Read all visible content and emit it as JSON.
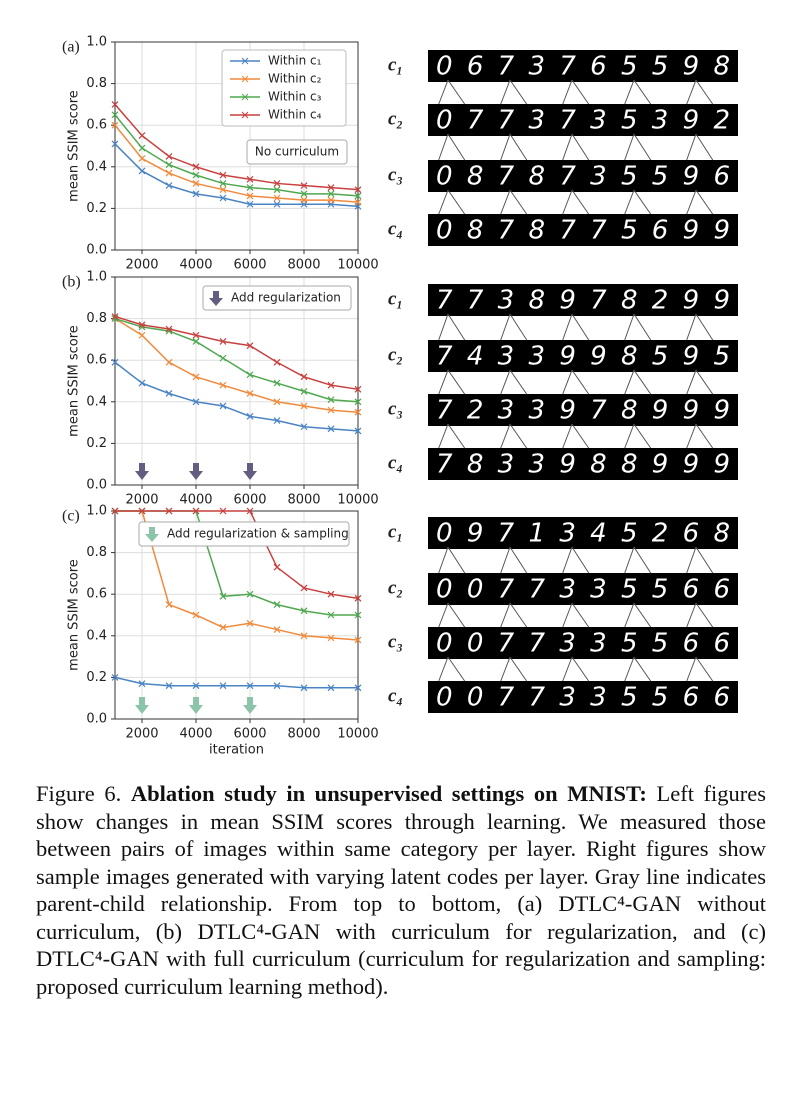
{
  "chart_data": [
    {
      "type": "line",
      "panel_label": "(a)",
      "ylabel": "mean SSIM score",
      "annotation": "No curriculum",
      "legend": "upper right",
      "x": [
        1000,
        2000,
        3000,
        4000,
        5000,
        6000,
        7000,
        8000,
        9000,
        10000
      ],
      "xlim": [
        1000,
        10000
      ],
      "xticks": [
        2000,
        4000,
        6000,
        8000,
        10000
      ],
      "ylim": [
        0,
        1
      ],
      "yticks": [
        {
          "value": 0,
          "label": "0.0"
        },
        0.2,
        0.4,
        0.6,
        0.8,
        {
          "value": 1,
          "label": "1.0"
        }
      ],
      "series": [
        {
          "name": "Within c₁",
          "color": "#4a84c4",
          "values": [
            0.51,
            0.38,
            0.31,
            0.27,
            0.25,
            0.22,
            0.22,
            0.22,
            0.22,
            0.21
          ]
        },
        {
          "name": "Within c₂",
          "color": "#f08a3c",
          "values": [
            0.6,
            0.44,
            0.37,
            0.32,
            0.29,
            0.26,
            0.25,
            0.24,
            0.24,
            0.23
          ]
        },
        {
          "name": "Within c₃",
          "color": "#4fa84f",
          "values": [
            0.65,
            0.49,
            0.41,
            0.36,
            0.32,
            0.3,
            0.29,
            0.27,
            0.27,
            0.26
          ]
        },
        {
          "name": "Within c₄",
          "color": "#c8413f",
          "values": [
            0.7,
            0.55,
            0.45,
            0.4,
            0.36,
            0.34,
            0.32,
            0.31,
            0.3,
            0.29
          ]
        }
      ]
    },
    {
      "type": "line",
      "panel_label": "(b)",
      "ylabel": "mean SSIM score",
      "annotation": "Add regularization",
      "arrows_x": [
        2000,
        4000,
        6000
      ],
      "arrow_color": "#635d82",
      "x": [
        1000,
        2000,
        3000,
        4000,
        5000,
        6000,
        7000,
        8000,
        9000,
        10000
      ],
      "xlim": [
        1000,
        10000
      ],
      "xticks": [
        2000,
        4000,
        6000,
        8000,
        10000
      ],
      "ylim": [
        0,
        1
      ],
      "yticks": [
        {
          "value": 0,
          "label": "0.0"
        },
        0.2,
        0.4,
        0.6,
        0.8,
        {
          "value": 1,
          "label": "1.0"
        }
      ],
      "series": [
        {
          "color": "#4a84c4",
          "values": [
            0.59,
            0.49,
            0.44,
            0.4,
            0.38,
            0.33,
            0.31,
            0.28,
            0.27,
            0.26
          ]
        },
        {
          "color": "#f08a3c",
          "values": [
            0.8,
            0.72,
            0.59,
            0.52,
            0.48,
            0.44,
            0.4,
            0.38,
            0.36,
            0.35
          ]
        },
        {
          "color": "#4fa84f",
          "values": [
            0.8,
            0.76,
            0.74,
            0.69,
            0.61,
            0.53,
            0.49,
            0.45,
            0.41,
            0.4
          ]
        },
        {
          "color": "#c8413f",
          "values": [
            0.81,
            0.77,
            0.75,
            0.72,
            0.69,
            0.67,
            0.59,
            0.52,
            0.48,
            0.46
          ]
        }
      ]
    },
    {
      "type": "line",
      "panel_label": "(c)",
      "ylabel": "mean SSIM score",
      "xlabel": "iteration",
      "annotation": "Add regularization & sampling",
      "arrows_x": [
        2000,
        4000,
        6000
      ],
      "arrow_color": "#8cc4aa",
      "x": [
        1000,
        2000,
        3000,
        4000,
        5000,
        6000,
        7000,
        8000,
        9000,
        10000
      ],
      "xlim": [
        1000,
        10000
      ],
      "xticks": [
        2000,
        4000,
        6000,
        8000,
        10000
      ],
      "ylim": [
        0,
        1
      ],
      "yticks": [
        {
          "value": 0,
          "label": "0.0"
        },
        0.2,
        0.4,
        0.6,
        0.8,
        {
          "value": 1,
          "label": "1.0"
        }
      ],
      "series": [
        {
          "color": "#4a84c4",
          "values": [
            0.2,
            0.17,
            0.16,
            0.16,
            0.16,
            0.16,
            0.16,
            0.15,
            0.15,
            0.15
          ]
        },
        {
          "color": "#f08a3c",
          "values": [
            1.0,
            1.0,
            0.55,
            0.5,
            0.44,
            0.46,
            0.43,
            0.4,
            0.39,
            0.38
          ]
        },
        {
          "color": "#4fa84f",
          "values": [
            1.0,
            1.0,
            1.0,
            1.0,
            0.59,
            0.6,
            0.55,
            0.52,
            0.5,
            0.5
          ]
        },
        {
          "color": "#c8413f",
          "values": [
            1.0,
            1.0,
            1.0,
            1.0,
            1.0,
            1.0,
            0.73,
            0.63,
            0.6,
            0.58
          ]
        }
      ]
    }
  ],
  "samples": [
    [
      {
        "label": "c₁",
        "digits": "0673765598"
      },
      {
        "label": "c₂",
        "digits": "0773735392"
      },
      {
        "label": "c₃",
        "digits": "0878735596"
      },
      {
        "label": "c₄",
        "digits": "0878775699"
      }
    ],
    [
      {
        "label": "c₁",
        "digits": "7738978299"
      },
      {
        "label": "c₂",
        "digits": "7433998595"
      },
      {
        "label": "c₃",
        "digits": "7233978999"
      },
      {
        "label": "c₄",
        "digits": "7833988999"
      }
    ],
    [
      {
        "label": "c₁",
        "digits": "0971345268"
      },
      {
        "label": "c₂",
        "digits": "0077335566"
      },
      {
        "label": "c₃",
        "digits": "0077335566"
      },
      {
        "label": "c₄",
        "digits": "0077335566"
      }
    ]
  ],
  "caption": {
    "label": "Figure 6.",
    "bold": "Ablation study in unsupervised settings on MNIST:",
    "text": "Left figures show changes in mean SSIM scores through learning. We measured those between pairs of images within same category per layer. Right figures show sample images generated with varying latent codes per layer. Gray line indicates parent-child relationship. From top to bottom, (a) DTLC⁴-GAN without curriculum, (b) DTLC⁴-GAN with curriculum for regularization, and (c) DTLC⁴-GAN with full curriculum (curriculum for regularization and sampling: proposed curriculum learning method)."
  }
}
